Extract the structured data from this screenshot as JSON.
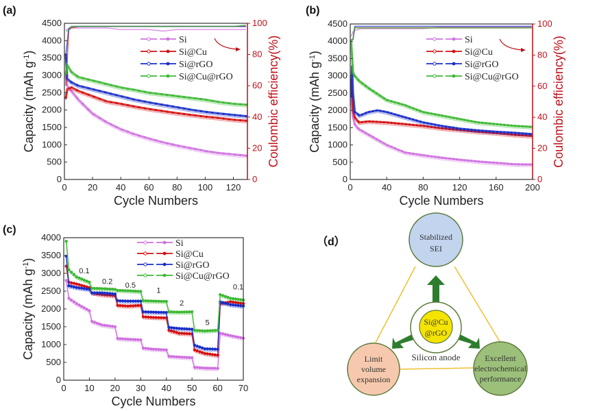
{
  "colors": {
    "Si": "#d070e0",
    "Si@Cu": "#d41010",
    "Si@rGO": "#1a2ec8",
    "Si@Cu@rGO": "#3cb832",
    "ce_axis": "#c0101a",
    "sei_fill": "#c3d4ee",
    "lve_fill": "#f6c9ae",
    "eep_fill": "#9cc07a",
    "core_fill": "#f4e400",
    "arrow": "#2e7d2e",
    "tri_line": "#f0c030"
  },
  "chart_data": [
    {
      "panel": "(a)",
      "type": "scatter",
      "xlabel": "Cycle Numbers",
      "ylabel": "Capacity (mAh g-1)",
      "ylabel2": "Coulombic efficiency(%)",
      "xlim": [
        0,
        130
      ],
      "ylim": [
        0,
        4500
      ],
      "ylim2": [
        0,
        100
      ],
      "xticks": [
        0,
        20,
        40,
        60,
        80,
        100,
        120
      ],
      "yticks": [
        0,
        500,
        1000,
        1500,
        2000,
        2500,
        3000,
        3500,
        4000,
        4500
      ],
      "yticks2": [
        0,
        20,
        40,
        60,
        80,
        100
      ],
      "legend": [
        "Si",
        "Si@Cu",
        "Si@rGO",
        "Si@Cu@rGO"
      ],
      "legend_position": "top-right",
      "series": [
        {
          "name": "Si",
          "x": [
            1,
            2,
            5,
            10,
            20,
            30,
            40,
            50,
            60,
            70,
            80,
            90,
            100,
            110,
            120,
            130
          ],
          "capacity": [
            2950,
            2700,
            2550,
            2300,
            1900,
            1650,
            1450,
            1300,
            1180,
            1070,
            980,
            900,
            820,
            760,
            720,
            680
          ],
          "ce": [
            96,
            96,
            97,
            97,
            97,
            97,
            96,
            96,
            96,
            95,
            96,
            96,
            96,
            96,
            96,
            96
          ]
        },
        {
          "name": "Si@Cu",
          "x": [
            1,
            2,
            5,
            10,
            20,
            30,
            40,
            50,
            60,
            70,
            80,
            90,
            100,
            110,
            120,
            130
          ],
          "capacity": [
            2350,
            2600,
            2650,
            2550,
            2400,
            2250,
            2180,
            2100,
            2030,
            1970,
            1910,
            1860,
            1810,
            1770,
            1720,
            1690
          ],
          "ce": [
            60,
            95,
            97,
            98,
            98,
            98,
            98,
            98,
            98,
            98,
            98,
            98,
            98,
            98,
            98,
            98
          ]
        },
        {
          "name": "Si@rGO",
          "x": [
            1,
            2,
            5,
            10,
            20,
            30,
            40,
            50,
            60,
            70,
            80,
            90,
            100,
            110,
            120,
            130
          ],
          "capacity": [
            3600,
            2900,
            2800,
            2700,
            2600,
            2500,
            2400,
            2300,
            2220,
            2150,
            2080,
            2010,
            1950,
            1900,
            1860,
            1820
          ],
          "ce": [
            80,
            96,
            98,
            98,
            98,
            98,
            98,
            98,
            98,
            98,
            98,
            98,
            98,
            98,
            98,
            98
          ]
        },
        {
          "name": "Si@Cu@rGO",
          "x": [
            1,
            2,
            5,
            10,
            20,
            30,
            40,
            50,
            60,
            70,
            80,
            90,
            100,
            110,
            120,
            130
          ],
          "capacity": [
            3050,
            3300,
            3100,
            2950,
            2850,
            2750,
            2650,
            2580,
            2500,
            2450,
            2400,
            2350,
            2300,
            2230,
            2180,
            2150
          ],
          "ce": [
            95,
            94,
            98,
            98,
            98,
            98,
            98,
            98,
            98,
            98,
            98,
            98,
            98,
            98,
            98,
            99
          ]
        }
      ]
    },
    {
      "panel": "(b)",
      "type": "scatter",
      "xlabel": "Cycle Numbers",
      "ylabel": "Capacity (mAh g-1)",
      "ylabel2": "Coulombic efficiency(%)",
      "xlim": [
        0,
        200
      ],
      "ylim": [
        0,
        4500
      ],
      "ylim2": [
        0,
        100
      ],
      "xticks": [
        0,
        40,
        80,
        120,
        160,
        200
      ],
      "yticks": [
        0,
        500,
        1000,
        1500,
        2000,
        2500,
        3000,
        3500,
        4000,
        4500
      ],
      "yticks2": [
        0,
        20,
        40,
        60,
        80,
        100
      ],
      "legend": [
        "Si",
        "Si@Cu",
        "Si@rGO",
        "Si@Cu@rGO"
      ],
      "legend_position": "top-right",
      "series": [
        {
          "name": "Si",
          "x": [
            1,
            3,
            5,
            8,
            10,
            20,
            40,
            60,
            80,
            100,
            120,
            140,
            160,
            180,
            200
          ],
          "capacity": [
            2300,
            1800,
            1600,
            1500,
            1450,
            1300,
            1000,
            780,
            700,
            630,
            570,
            520,
            480,
            440,
            430
          ],
          "ce": [
            92,
            95,
            96,
            96,
            97,
            97,
            97,
            97,
            97,
            98,
            98,
            98,
            98,
            98,
            98
          ]
        },
        {
          "name": "Si@Cu",
          "x": [
            1,
            3,
            5,
            8,
            10,
            20,
            40,
            60,
            80,
            100,
            120,
            140,
            160,
            180,
            200
          ],
          "capacity": [
            2900,
            2000,
            1800,
            1700,
            1650,
            1680,
            1650,
            1600,
            1550,
            1480,
            1430,
            1380,
            1340,
            1290,
            1260
          ]
        },
        {
          "name": "Si@rGO",
          "x": [
            1,
            2,
            3,
            5,
            8,
            10,
            20,
            30,
            40,
            60,
            80,
            100,
            120,
            140,
            160,
            180,
            200
          ],
          "capacity": [
            2400,
            3300,
            2500,
            1950,
            1900,
            1850,
            1950,
            2000,
            1950,
            1800,
            1650,
            1550,
            1470,
            1420,
            1380,
            1350,
            1310
          ]
        },
        {
          "name": "Si@Cu@rGO",
          "x": [
            1,
            3,
            5,
            10,
            20,
            40,
            60,
            80,
            100,
            120,
            140,
            160,
            180,
            200
          ],
          "capacity": [
            4000,
            3100,
            3000,
            2850,
            2650,
            2300,
            2150,
            1950,
            1850,
            1750,
            1650,
            1600,
            1550,
            1520
          ]
        }
      ]
    },
    {
      "panel": "(c)",
      "type": "scatter",
      "xlabel": "Cycle Numbers",
      "ylabel": "Capacity (mAh g-1)",
      "xlim": [
        0,
        70
      ],
      "ylim": [
        0,
        4000
      ],
      "xticks": [
        0,
        10,
        20,
        30,
        40,
        50,
        60,
        70
      ],
      "yticks": [
        0,
        500,
        1000,
        1500,
        2000,
        2500,
        3000,
        3500,
        4000
      ],
      "legend": [
        "Si",
        "Si@Cu",
        "Si@rGO",
        "Si@Cu@rGO"
      ],
      "legend_position": "top-right",
      "annotations": [
        {
          "text": "0.1",
          "x": 8,
          "y": 3000
        },
        {
          "text": "0.2",
          "x": 17,
          "y": 2700
        },
        {
          "text": "0.5",
          "x": 26,
          "y": 2600
        },
        {
          "text": "1",
          "x": 37,
          "y": 2450
        },
        {
          "text": "2",
          "x": 46,
          "y": 2100
        },
        {
          "text": "5",
          "x": 56,
          "y": 1550
        },
        {
          "text": "0.1",
          "x": 68,
          "y": 2550
        }
      ],
      "series": [
        {
          "name": "Si",
          "x": [
            1,
            2,
            5,
            10,
            11,
            15,
            20,
            21,
            25,
            30,
            31,
            35,
            40,
            41,
            45,
            50,
            51,
            55,
            60,
            61,
            65,
            70
          ],
          "capacity": [
            2800,
            2300,
            2150,
            1950,
            1650,
            1550,
            1500,
            1170,
            1150,
            1130,
            900,
            870,
            850,
            670,
            650,
            630,
            360,
            340,
            330,
            1320,
            1250,
            1180
          ]
        },
        {
          "name": "Si@Cu",
          "x": [
            1,
            2,
            5,
            10,
            11,
            15,
            20,
            21,
            25,
            30,
            31,
            35,
            40,
            41,
            45,
            50,
            51,
            55,
            60,
            61,
            65,
            70
          ],
          "capacity": [
            3200,
            2750,
            2700,
            2600,
            2450,
            2400,
            2370,
            2100,
            2080,
            2100,
            1780,
            1760,
            1750,
            1400,
            1320,
            1300,
            850,
            750,
            700,
            2150,
            2200,
            2150
          ]
        },
        {
          "name": "Si@rGO",
          "x": [
            1,
            2,
            5,
            10,
            11,
            15,
            20,
            21,
            25,
            30,
            31,
            35,
            40,
            41,
            45,
            50,
            51,
            55,
            60,
            61,
            65,
            70
          ],
          "capacity": [
            3480,
            2650,
            2600,
            2550,
            2450,
            2450,
            2420,
            2230,
            2220,
            2220,
            1920,
            1910,
            1900,
            1480,
            1450,
            1430,
            980,
            880,
            870,
            2200,
            2120,
            2080
          ]
        },
        {
          "name": "Si@Cu@rGO",
          "x": [
            1,
            2,
            5,
            10,
            11,
            15,
            20,
            21,
            25,
            30,
            31,
            35,
            40,
            41,
            45,
            50,
            51,
            55,
            60,
            61,
            65,
            70
          ],
          "capacity": [
            3900,
            3100,
            2900,
            2750,
            2580,
            2570,
            2550,
            2520,
            2510,
            2490,
            2230,
            2220,
            2210,
            1920,
            1910,
            1920,
            1400,
            1380,
            1400,
            2400,
            2300,
            2250
          ]
        }
      ]
    }
  ],
  "panel_labels": {
    "a": "(a)",
    "b": "(b)",
    "c": "(c)",
    "d": "（d）"
  },
  "axis_text": {
    "ticks_a_x": [
      "0",
      "20",
      "40",
      "60",
      "80",
      "100",
      "120"
    ],
    "ticks_b_x": [
      "0",
      "40",
      "80",
      "120",
      "160",
      "200"
    ],
    "ticks_c_x": [
      "0",
      "10",
      "20",
      "30",
      "40",
      "50",
      "60",
      "70"
    ]
  },
  "diagram": {
    "top_node": [
      "Stabilized",
      "SEI"
    ],
    "left_node": [
      "Limit",
      "volume",
      "expansion"
    ],
    "right_node": [
      "Excellent",
      "electrochemical",
      "performance"
    ],
    "core": [
      "Si@Cu",
      "@rGO"
    ],
    "core_label": "Silicon anode"
  }
}
